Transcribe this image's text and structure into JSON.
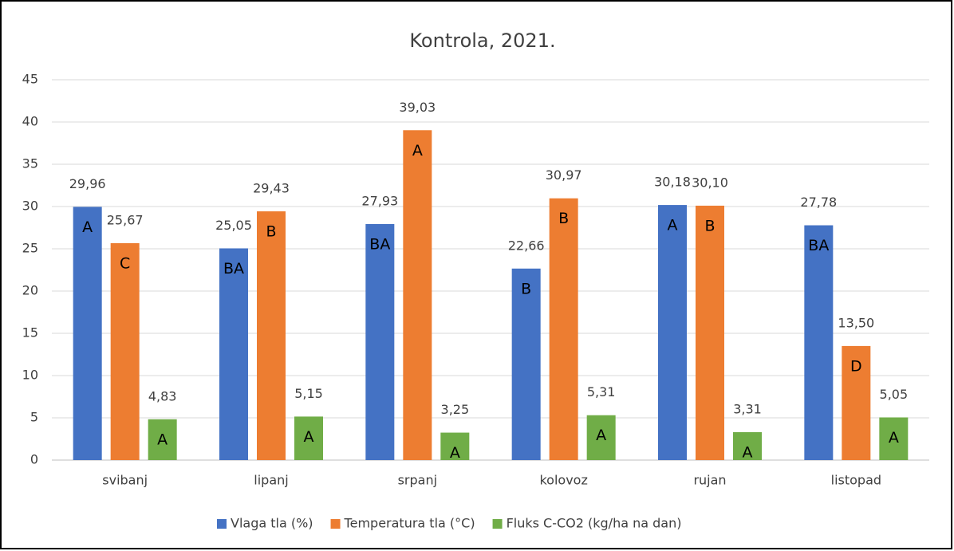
{
  "chart_data": {
    "type": "bar",
    "title": "Kontrola, 2021.",
    "categories": [
      "svibanj",
      "lipanj",
      "srpanj",
      "kolovoz",
      "rujan",
      "listopad"
    ],
    "series": [
      {
        "name": "Vlaga tla (%)",
        "color": "#4472c4",
        "values": [
          29.96,
          25.05,
          27.93,
          22.66,
          30.18,
          27.78
        ],
        "value_labels": [
          "29,96",
          "25,05",
          "27,93",
          "22,66",
          "30,18",
          "27,78"
        ],
        "letters": [
          "A",
          "BA",
          "BA",
          "B",
          "A",
          "BA"
        ]
      },
      {
        "name": "Temperatura tla (°C)",
        "color": "#ed7d31",
        "values": [
          25.67,
          29.43,
          39.03,
          30.97,
          30.1,
          13.5
        ],
        "value_labels": [
          "25,67",
          "29,43",
          "39,03",
          "30,97",
          "30,10",
          "13,50"
        ],
        "letters": [
          "C",
          "B",
          "A",
          "B",
          "B",
          "D"
        ]
      },
      {
        "name": "Fluks C-CO2 (kg/ha na dan)",
        "color": "#70ad47",
        "values": [
          4.83,
          5.15,
          3.25,
          5.31,
          3.31,
          5.05
        ],
        "value_labels": [
          "4,83",
          "5,15",
          "3,25",
          "5,31",
          "3,31",
          "5,05"
        ],
        "letters": [
          "A",
          "A",
          "A",
          "A",
          "A",
          "A"
        ]
      }
    ],
    "ylim": [
      0,
      45
    ],
    "yticks": [
      0,
      5,
      10,
      15,
      20,
      25,
      30,
      35,
      40,
      45
    ],
    "grid": true,
    "legend": "bottom"
  }
}
